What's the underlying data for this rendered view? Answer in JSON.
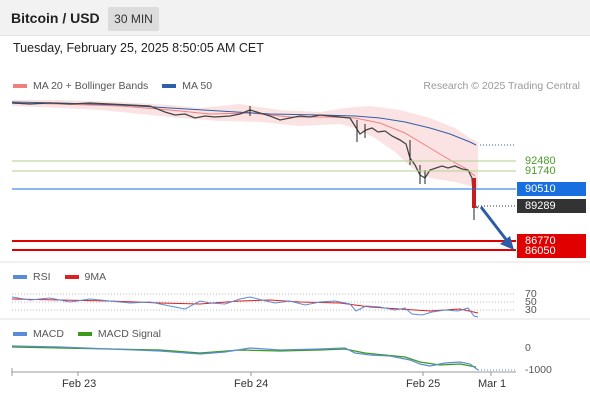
{
  "header": {
    "title": "Bitcoin / USD",
    "timeframe": "30 MIN"
  },
  "datetime": "Tuesday, February 25, 2025 8:50:05 AM CET",
  "legend": {
    "ma20": {
      "label": "MA 20 + Bollinger Bands",
      "color": "#f08080"
    },
    "ma50": {
      "label": "MA 50",
      "color": "#2f5fa8"
    }
  },
  "credit": "Research © 2025 Trading Central",
  "levels": {
    "resistance2": "92480",
    "resistance1": "91740",
    "pivot": "90510",
    "last": "89289",
    "support1": "86770",
    "support2": "86050"
  },
  "rsi": {
    "label": "RSI",
    "ma_label": "9MA",
    "lines": [
      "70",
      "50",
      "30"
    ],
    "colors": {
      "rsi": "#5b8bd8",
      "ma": "#e02020"
    }
  },
  "macd": {
    "label": "MACD",
    "signal_label": "MACD Signal",
    "ticks": [
      "0",
      "-1000"
    ],
    "colors": {
      "macd": "#5b8bd8",
      "signal": "#3c9a1a"
    }
  },
  "dates": [
    "Feb 23",
    "Feb 24",
    "Feb 25",
    "Mar 1"
  ]
}
